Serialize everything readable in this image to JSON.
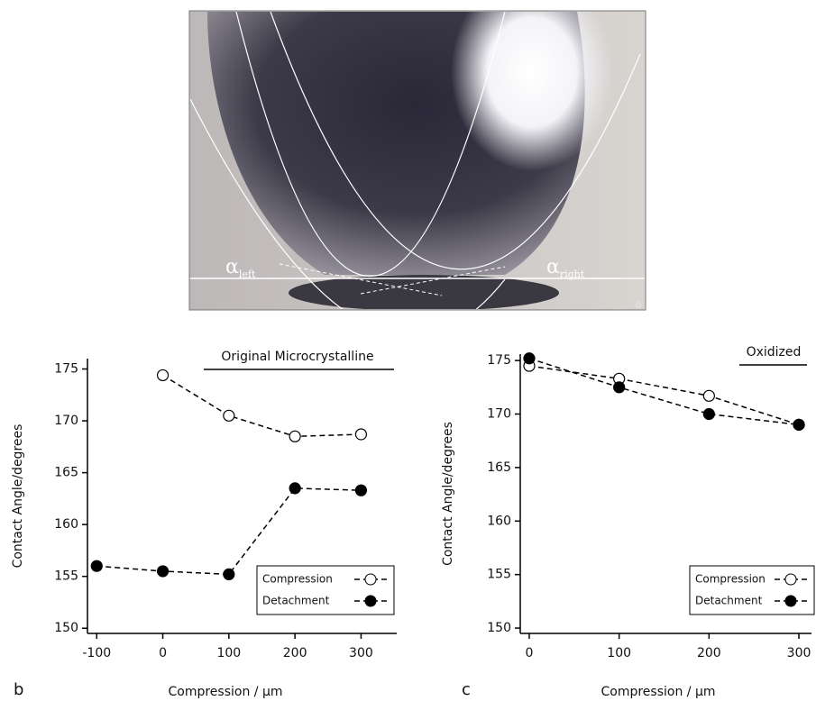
{
  "photo": {
    "labels": [
      {
        "symbol": "α",
        "subscript": "left"
      },
      {
        "symbol": "α",
        "subscript": "right"
      }
    ],
    "panel_label": "a"
  },
  "chart_data": [
    {
      "type": "line",
      "panel_label": "b",
      "annotation": "Original Microcrystalline",
      "x_label": "Compression / µm",
      "y_label": "Contact Angle/degrees",
      "xlim": [
        -114,
        354
      ],
      "ylim": [
        149.5,
        176
      ],
      "xticks": [
        -100,
        0,
        100,
        200,
        300
      ],
      "yticks": [
        150,
        155,
        160,
        165,
        170,
        175
      ],
      "legend": "lower right",
      "series": [
        {
          "name": "Compression",
          "color": "#000000",
          "marker": "open",
          "x": [
            0,
            100,
            200,
            300
          ],
          "values": [
            174.4,
            170.5,
            168.5,
            168.7
          ]
        },
        {
          "name": "Detachment",
          "color": "#000000",
          "marker": "filled",
          "x": [
            -100,
            0,
            100,
            200,
            300
          ],
          "values": [
            156.0,
            155.5,
            155.2,
            163.5,
            163.3
          ]
        }
      ]
    },
    {
      "type": "line",
      "panel_label": "c",
      "annotation": "Oxidized",
      "x_label": "Compression / µm",
      "y_label": "Contact Angle/degrees",
      "xlim": [
        -10,
        314
      ],
      "ylim": [
        149.5,
        175.6
      ],
      "xticks": [
        0,
        100,
        200,
        300
      ],
      "yticks": [
        150,
        155,
        160,
        165,
        170,
        175
      ],
      "legend": "lower right",
      "series": [
        {
          "name": "Compression",
          "color": "#000000",
          "marker": "open",
          "x": [
            0,
            100,
            200,
            300
          ],
          "values": [
            174.5,
            173.3,
            171.7,
            169.0
          ]
        },
        {
          "name": "Detachment",
          "color": "#000000",
          "marker": "filled",
          "x": [
            0,
            100,
            200,
            300
          ],
          "values": [
            175.2,
            172.5,
            170.0,
            169.0
          ]
        }
      ]
    }
  ]
}
